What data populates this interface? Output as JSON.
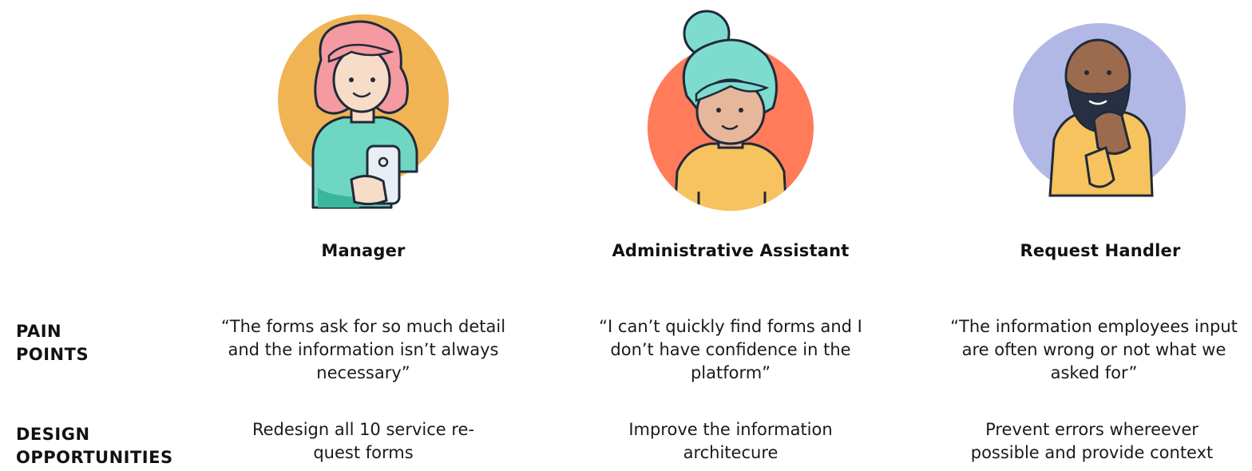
{
  "personas": [
    {
      "role": "Manager",
      "pain_point": "“The forms ask for so much detail and the information isn’t always necessary”",
      "design_opportunity": "Redesign all 10 service re-quest forms",
      "colors": {
        "circle": "#F0B455",
        "hair": "#F49AA0",
        "shirt": "#6FD6C2",
        "skin": "#F7DCC8"
      }
    },
    {
      "role": "Administrative Assistant",
      "pain_point": "“I can’t quickly find forms and I don’t have confidence in the platform”",
      "design_opportunity": "Improve the information architecure",
      "colors": {
        "circle": "#FF7B5A",
        "hair": "#7EDBD0",
        "shirt": "#F6C35E",
        "skin": "#E7B79C"
      }
    },
    {
      "role": "Request Handler",
      "pain_point": "“The information employees input are often wrong or not what we asked for”",
      "design_opportunity": "Prevent errors whereever possible and provide context",
      "colors": {
        "circle": "#B2B8E6",
        "beard": "#273043",
        "shirt": "#F6C35E",
        "skin": "#9C6B4E"
      }
    }
  ],
  "labels": {
    "pain_points": [
      "PAIN",
      "POINTS"
    ],
    "design_opportunities": [
      "DESIGN",
      "OPPORTUNITIES"
    ]
  }
}
